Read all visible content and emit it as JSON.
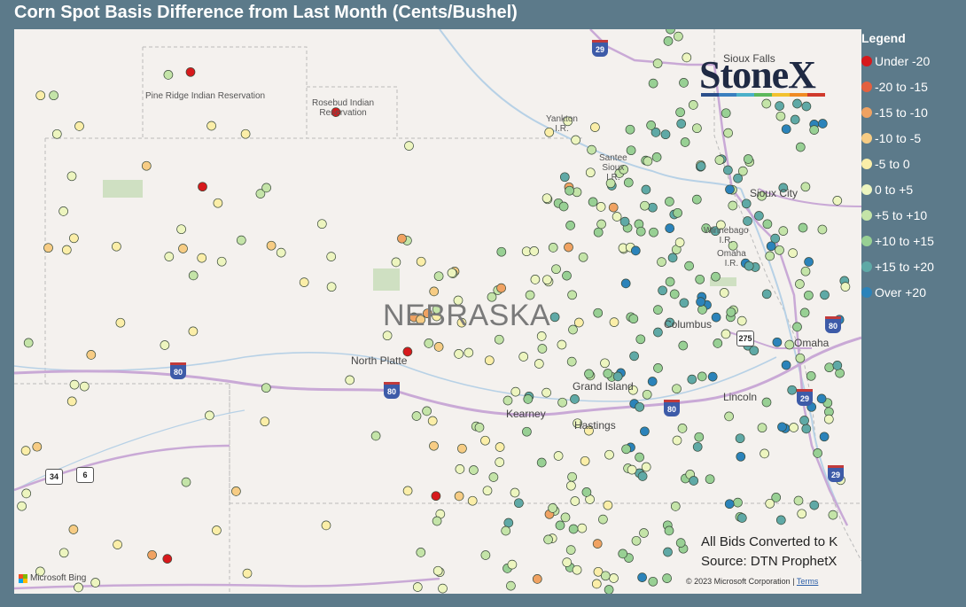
{
  "title": "Corn Spot Basis Difference from Last Month (Cents/Bushel)",
  "legend": {
    "title": "Legend",
    "items": [
      {
        "label": "Under -20",
        "color": "#d7191c"
      },
      {
        "label": "-20 to -15",
        "color": "#e3603f"
      },
      {
        "label": "-15 to -10",
        "color": "#f0a262"
      },
      {
        "label": "-10 to -5",
        "color": "#f7cc84"
      },
      {
        "label": "-5 to 0",
        "color": "#fbeea8"
      },
      {
        "label": "0 to +5",
        "color": "#edf5bf"
      },
      {
        "label": "+5 to +10",
        "color": "#c4e4a8"
      },
      {
        "label": "+10 to +15",
        "color": "#98d094"
      },
      {
        "label": "+15 to +20",
        "color": "#5fa9a6"
      },
      {
        "label": "Over +20",
        "color": "#2b83ba"
      }
    ]
  },
  "map": {
    "state_label": "NEBRASKA",
    "cities": [
      "North Platte",
      "Grand Island",
      "Kearney",
      "Hastings",
      "Columbus",
      "Lincoln",
      "Omaha",
      "Sioux City",
      "Sioux Falls"
    ],
    "reservations": [
      "Pine Ridge Indian Reservation",
      "Rosebud Indian\nReservation",
      "Yankton\nI.R.",
      "Santee\nSioux\nI.R.",
      "Winnebago\nI.R.",
      "Omaha\nI.R."
    ],
    "highways": [
      "80",
      "80",
      "80",
      "29",
      "29",
      "80",
      "34",
      "6",
      "275",
      "29"
    ]
  },
  "branding": {
    "logo": "StoneX",
    "logo_colors": [
      "#2b4f8a",
      "#3a7fbf",
      "#4bb0c9",
      "#5db85c",
      "#f2c12e",
      "#f08a24",
      "#d03a2c"
    ]
  },
  "notes": [
    "All Bids Converted to K",
    "Source: DTN ProphetX"
  ],
  "attribution": {
    "bing": "Microsoft Bing",
    "copyright": "© 2023 Microsoft Corporation",
    "separator": "|",
    "terms": "Terms"
  }
}
